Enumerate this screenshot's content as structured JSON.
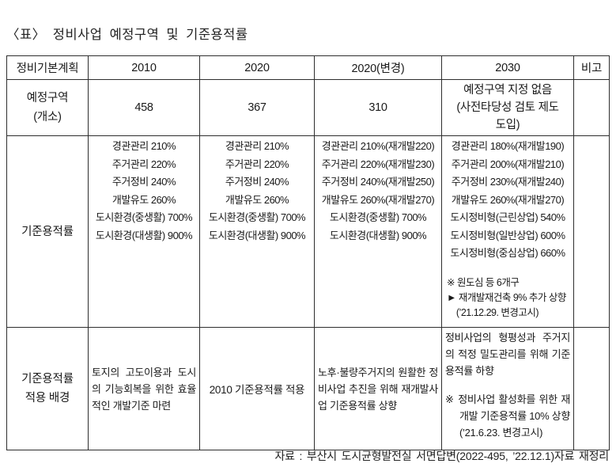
{
  "title": "〈표〉 정비사업 예정구역 및 기준용적률",
  "source_note": "자료 : 부산시 도시균형발전실 서면답변(2022-495, ’22.12.1)자료 재정리",
  "colors": {
    "text": "#1a1a1a",
    "border": "#2e2e2e",
    "background": "#ffffff"
  },
  "table": {
    "columns": [
      "정비기본계획",
      "2010",
      "2020",
      "2020(변경)",
      "2030",
      "비고"
    ],
    "rows": {
      "planned_zones": {
        "label": "예정구역\n(개소)",
        "y2010": "458",
        "y2020": "367",
        "y2020_change": "310",
        "y2030": "예정구역 지정 없음\n(사전타당성 검토 제도 도입)",
        "remark": ""
      },
      "standard_far": {
        "label": "기준용적률",
        "y2010": "경관관리 210%\n주거관리 220%\n주거정비 240%\n개발유도 260%\n도시환경(중생활) 700%\n도시환경(대생활) 900%",
        "y2020": "경관관리 210%\n주거관리 220%\n주거정비 240%\n개발유도 260%\n도시환경(중생활) 700%\n도시환경(대생활) 900%",
        "y2020_change": "경관관리 210%(재개발220)\n주거관리 220%(재개발230)\n주거정비 240%(재개발250)\n개발유도 260%(재개발270)\n도시환경(중생활) 700%\n도시환경(대생활) 900%",
        "y2030": "경관관리 180%(재개발190)\n주거관리 200%(재개발210)\n주거정비 230%(재개발240)\n개발유도 260%(재개발270)\n도시정비형(근린상업) 540%\n도시정비형(일반상업) 600%\n도시정비형(중심상업) 660%",
        "y2030_note": "※ 원도심 등 6개구\n► 재개발재건축 9% 추가 상향\n    (’21.12.29. 변경고시)",
        "remark": ""
      },
      "application_background": {
        "label": "기준용적률\n적용 배경",
        "y2010": "토지의 고도이용과 도시의 기능회복을 위한 효율적인 개발기준 마련",
        "y2020": "2010 기준용적률 적용",
        "y2020_change": "노후·불량주거지의 원활한 정비사업 추진을 위해 재개발사업 기준용적률 상향",
        "y2030": "정비사업의 형평성과 주거지의 적정 밀도관리를 위해 기준용적률 하향",
        "y2030_note": "※ 정비사업 활성화를 위한 재개발 기준용적률 10% 상향 (’21.6.23. 변경고시)",
        "remark": ""
      }
    }
  }
}
